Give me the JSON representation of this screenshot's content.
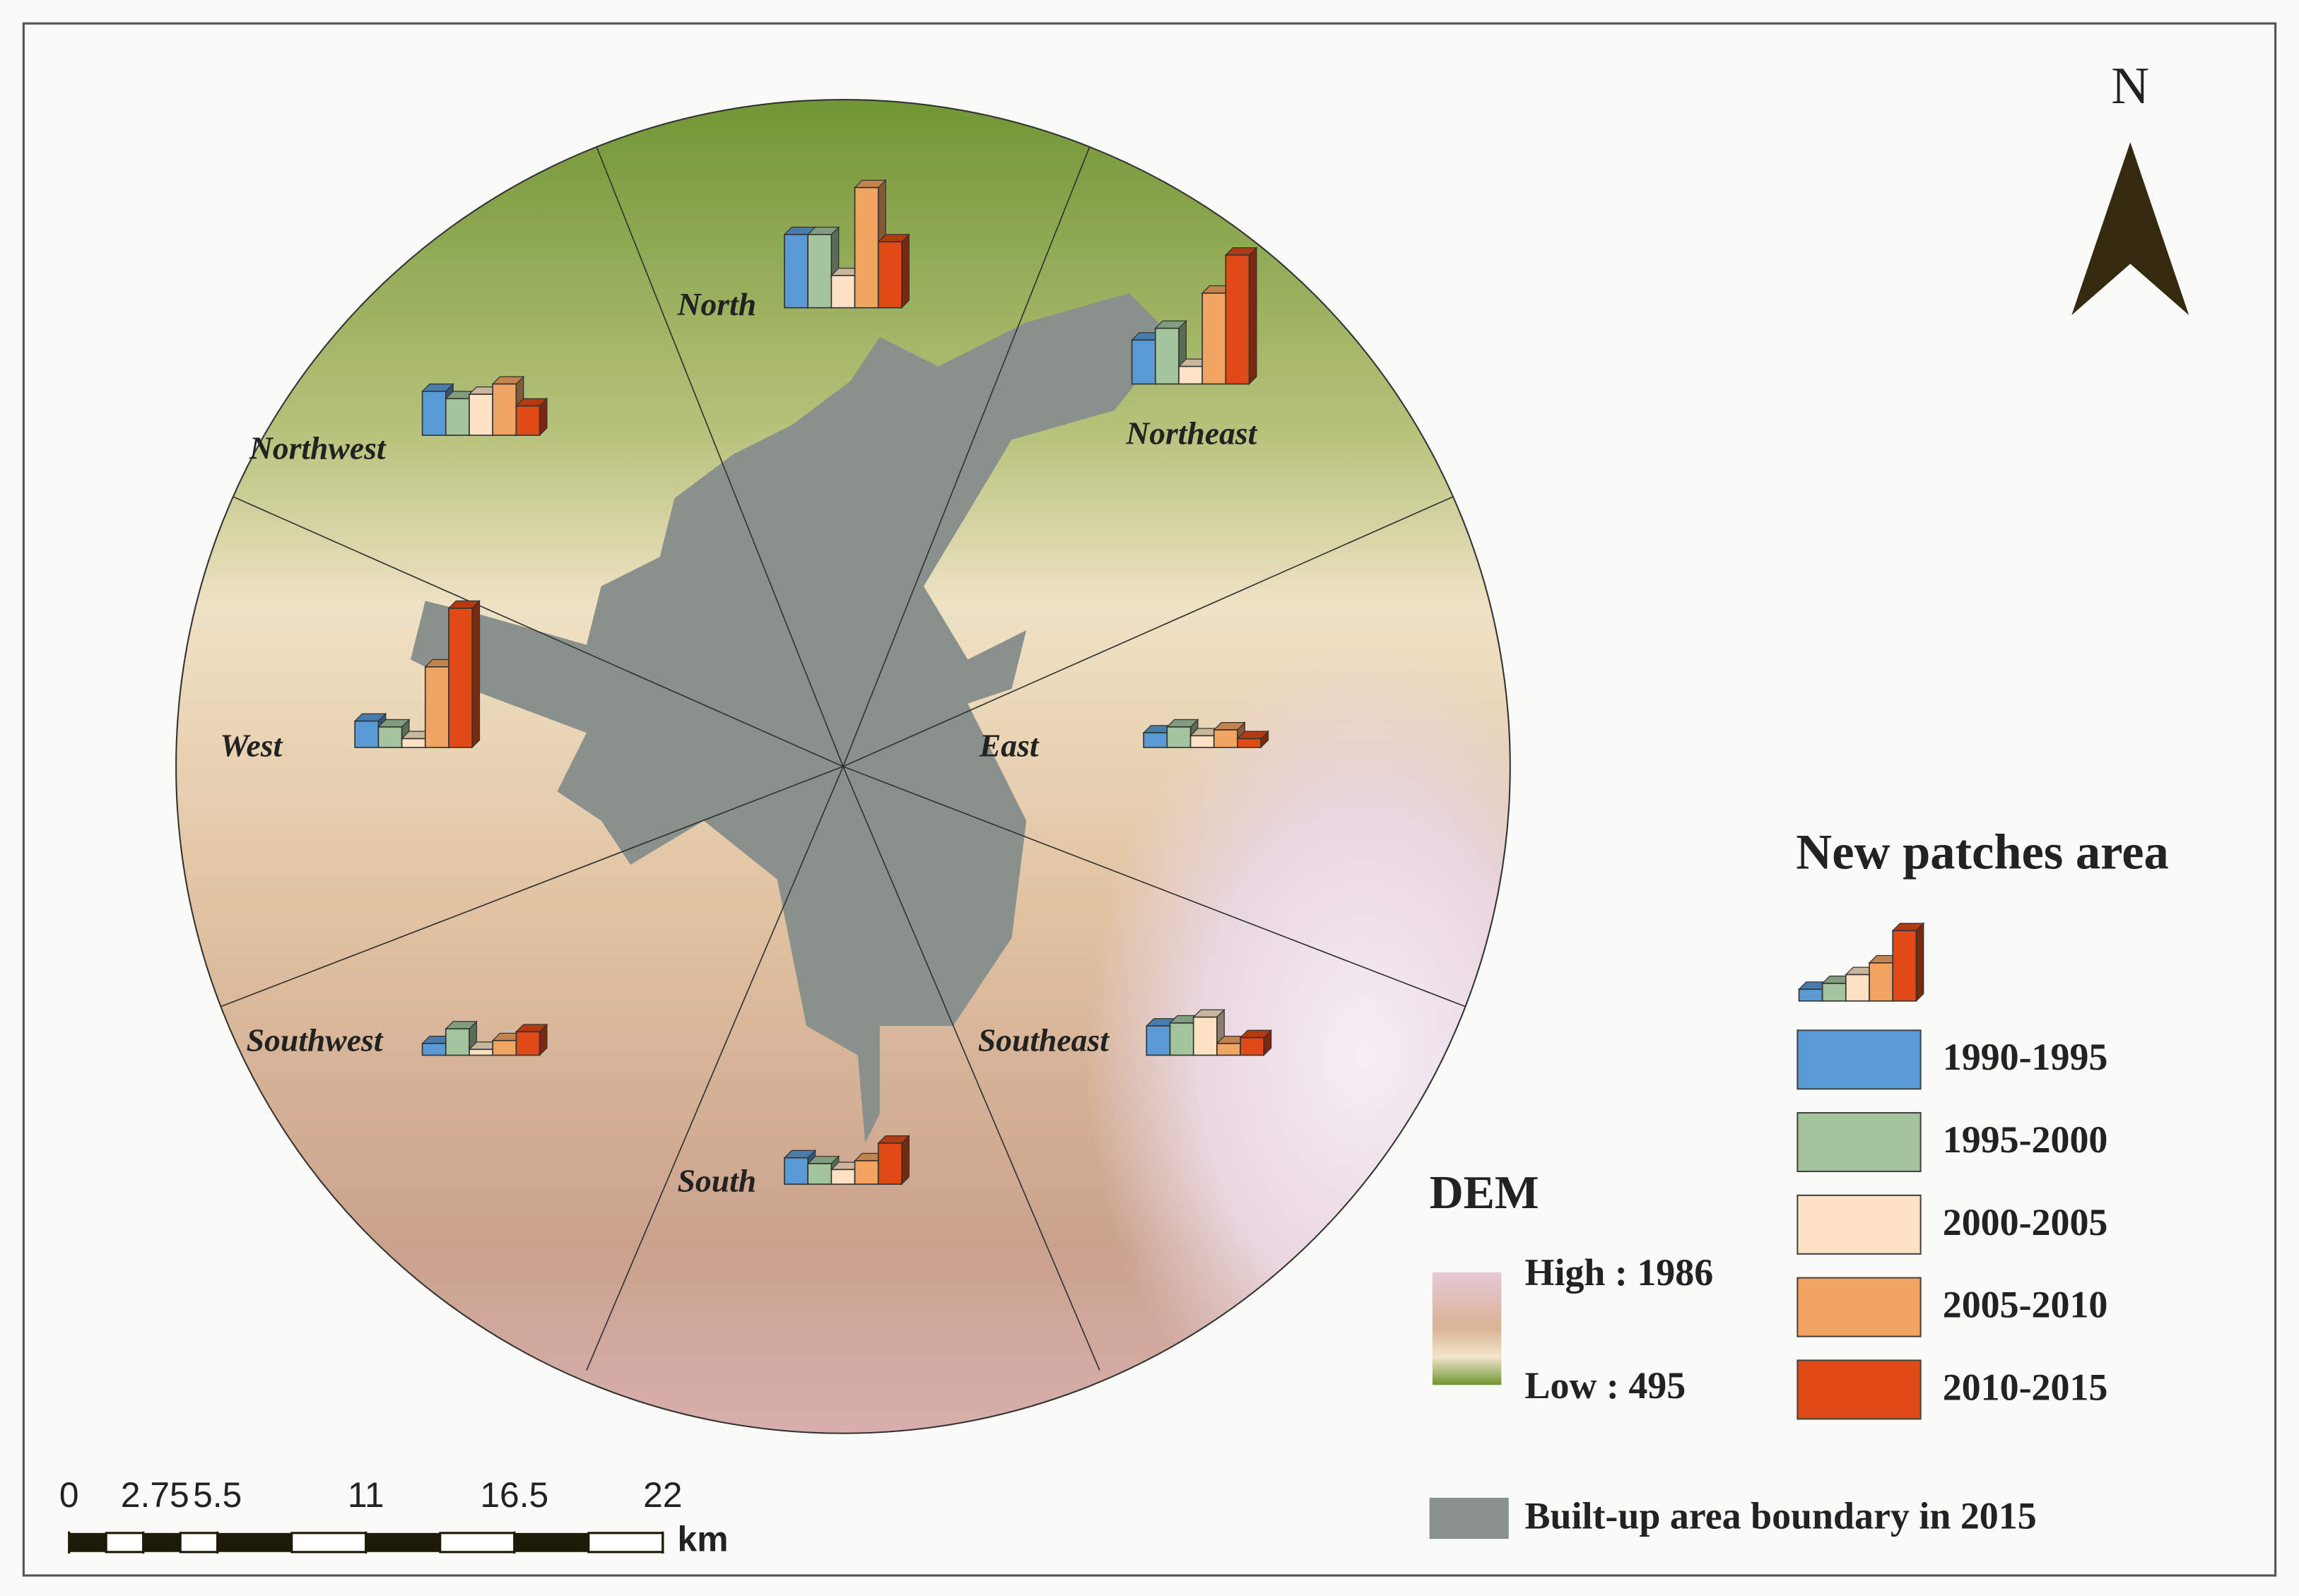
{
  "map": {
    "north_label": "N",
    "sectors": [
      {
        "label": "North",
        "values": [
          50,
          50,
          22,
          82,
          45
        ]
      },
      {
        "label": "Northeast",
        "values": [
          30,
          38,
          12,
          62,
          88
        ]
      },
      {
        "label": "Northwest",
        "values": [
          30,
          25,
          28,
          35,
          20
        ]
      },
      {
        "label": "West",
        "values": [
          18,
          14,
          6,
          55,
          95
        ]
      },
      {
        "label": "East",
        "values": [
          10,
          14,
          8,
          12,
          6
        ]
      },
      {
        "label": "Southeast",
        "values": [
          20,
          22,
          26,
          8,
          12
        ]
      },
      {
        "label": "Southwest",
        "values": [
          8,
          18,
          4,
          10,
          16
        ]
      },
      {
        "label": "South",
        "values": [
          18,
          14,
          10,
          16,
          28
        ]
      }
    ],
    "legend": {
      "title": "New patches area",
      "example_values": [
        8,
        12,
        18,
        26,
        48
      ],
      "periods": [
        {
          "label": "1990-1995",
          "color": "#5b9bd5"
        },
        {
          "label": "1995-2000",
          "color": "#a3c49c"
        },
        {
          "label": "2000-2005",
          "color": "#fde2c4"
        },
        {
          "label": "2005-2010",
          "color": "#f2a462"
        },
        {
          "label": "2010-2015",
          "color": "#df4a17"
        }
      ]
    },
    "dem": {
      "title": "DEM",
      "high_label": "High : 1986",
      "low_label": "Low : 495"
    },
    "scale_bar": {
      "ticks": [
        0,
        2.75,
        5.5,
        11,
        16.5,
        22
      ],
      "unit": "km"
    },
    "built_up": {
      "label": "Built-up area boundary in 2015",
      "color": "#8a918d"
    }
  }
}
